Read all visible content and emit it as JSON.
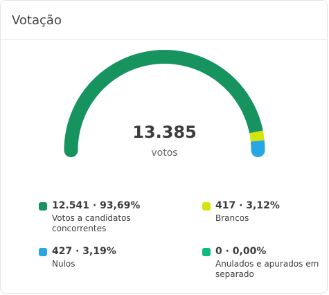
{
  "card": {
    "title": "Votação"
  },
  "total": {
    "value": "13.385",
    "label": "votos"
  },
  "legend": [
    {
      "value": "12.541 · 93,69%",
      "label": "Votos a candidatos concorrentes",
      "color": "#16935f"
    },
    {
      "value": "417 · 3,12%",
      "label": "Brancos",
      "color": "#d4e40f"
    },
    {
      "value": "427 · 3,19%",
      "label": "Nulos",
      "color": "#28a6e3"
    },
    {
      "value": "0 · 0,00%",
      "label": "Anulados e apurados em separado",
      "color": "#10b981"
    }
  ],
  "chart_data": {
    "type": "gauge",
    "total": 13385,
    "total_label": "votos",
    "series": [
      {
        "name": "Votos a candidatos concorrentes",
        "value": 12541,
        "percent": 93.69,
        "color": "#16935f"
      },
      {
        "name": "Brancos",
        "value": 417,
        "percent": 3.12,
        "color": "#d4e40f"
      },
      {
        "name": "Nulos",
        "value": 427,
        "percent": 3.19,
        "color": "#28a6e3"
      },
      {
        "name": "Anulados e apurados em separado",
        "value": 0,
        "percent": 0.0,
        "color": "#10b981"
      }
    ]
  }
}
